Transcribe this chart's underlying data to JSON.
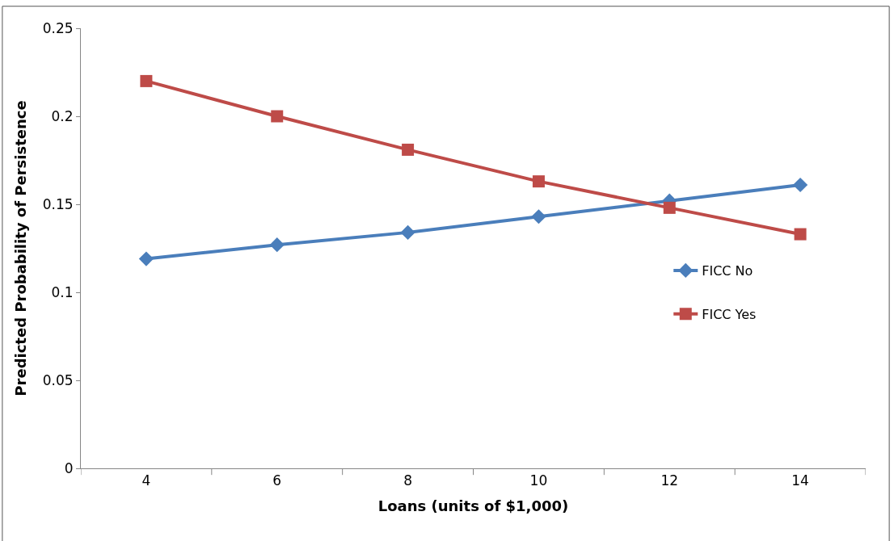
{
  "chart_data": {
    "type": "line",
    "xlabel": "Loans (units of $1,000)",
    "ylabel": "Predicted Probability of Persistence",
    "categories": [
      "4",
      "6",
      "8",
      "10",
      "12",
      "14"
    ],
    "series": [
      {
        "name": "FICC No",
        "color": "#4a7ebb",
        "marker": "diamond",
        "values": [
          0.119,
          0.127,
          0.134,
          0.143,
          0.152,
          0.161
        ]
      },
      {
        "name": "FICC Yes",
        "color": "#be4b48",
        "marker": "square",
        "values": [
          0.22,
          0.2,
          0.181,
          0.163,
          0.148,
          0.133
        ]
      }
    ],
    "ylim": [
      0,
      0.25
    ],
    "yticks": [
      {
        "value": 0,
        "label": "0"
      },
      {
        "value": 0.05,
        "label": "0.05"
      },
      {
        "value": 0.1,
        "label": "0.1"
      },
      {
        "value": 0.15,
        "label": "0.15"
      },
      {
        "value": 0.2,
        "label": "0.2"
      },
      {
        "value": 0.25,
        "label": "0.25"
      }
    ],
    "legend": "right",
    "line_style": "solid"
  }
}
